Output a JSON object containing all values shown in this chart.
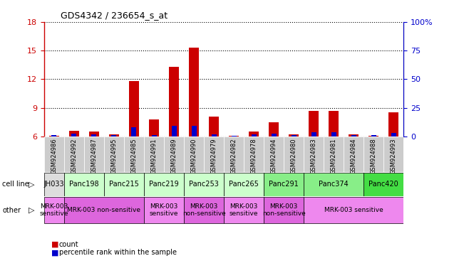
{
  "title": "GDS4342 / 236654_s_at",
  "samples": [
    "GSM924986",
    "GSM924992",
    "GSM924987",
    "GSM924995",
    "GSM924985",
    "GSM924991",
    "GSM924989",
    "GSM924990",
    "GSM924979",
    "GSM924982",
    "GSM924978",
    "GSM924994",
    "GSM924980",
    "GSM924983",
    "GSM924981",
    "GSM924984",
    "GSM924988",
    "GSM924993"
  ],
  "count_values": [
    6.1,
    6.6,
    6.5,
    6.2,
    11.8,
    7.8,
    13.3,
    15.3,
    8.1,
    6.05,
    6.5,
    7.5,
    6.2,
    8.7,
    8.7,
    6.2,
    6.1,
    8.5
  ],
  "percentile_values": [
    1.0,
    2.2,
    1.8,
    1.2,
    8.0,
    1.5,
    9.0,
    9.5,
    1.8,
    0.6,
    1.8,
    2.5,
    1.2,
    3.5,
    3.5,
    1.5,
    1.5,
    2.8
  ],
  "ylim_left": [
    6,
    18
  ],
  "ylim_right": [
    0,
    100
  ],
  "yticks_left": [
    6,
    9,
    12,
    15,
    18
  ],
  "yticks_right": [
    0,
    25,
    50,
    75,
    100
  ],
  "ytick_labels_right": [
    "0",
    "25",
    "50",
    "75",
    "100%"
  ],
  "cell_lines": [
    {
      "label": "JH033",
      "start": 0,
      "end": 1,
      "color": "#dddddd"
    },
    {
      "label": "Panc198",
      "start": 1,
      "end": 3,
      "color": "#ccffcc"
    },
    {
      "label": "Panc215",
      "start": 3,
      "end": 5,
      "color": "#ccffcc"
    },
    {
      "label": "Panc219",
      "start": 5,
      "end": 7,
      "color": "#ccffcc"
    },
    {
      "label": "Panc253",
      "start": 7,
      "end": 9,
      "color": "#ccffcc"
    },
    {
      "label": "Panc265",
      "start": 9,
      "end": 11,
      "color": "#ccffcc"
    },
    {
      "label": "Panc291",
      "start": 11,
      "end": 13,
      "color": "#88ee88"
    },
    {
      "label": "Panc374",
      "start": 13,
      "end": 16,
      "color": "#88ee88"
    },
    {
      "label": "Panc420",
      "start": 16,
      "end": 18,
      "color": "#44dd44"
    }
  ],
  "sample_bg_colors": [
    "#cccccc",
    "#cccccc",
    "#cccccc",
    "#cccccc",
    "#cccccc",
    "#cccccc",
    "#cccccc",
    "#cccccc",
    "#cccccc",
    "#cccccc",
    "#cccccc",
    "#cccccc",
    "#cccccc",
    "#cccccc",
    "#cccccc",
    "#cccccc",
    "#cccccc",
    "#cccccc"
  ],
  "other_rows": [
    {
      "label": "MRK-003\nsensitive",
      "start": 0,
      "end": 1,
      "color": "#ee88ee"
    },
    {
      "label": "MRK-003 non-sensitive",
      "start": 1,
      "end": 5,
      "color": "#dd66dd"
    },
    {
      "label": "MRK-003\nsensitive",
      "start": 5,
      "end": 7,
      "color": "#ee88ee"
    },
    {
      "label": "MRK-003\nnon-sensitive",
      "start": 7,
      "end": 9,
      "color": "#dd66dd"
    },
    {
      "label": "MRK-003\nsensitive",
      "start": 9,
      "end": 11,
      "color": "#ee88ee"
    },
    {
      "label": "MRK-003\nnon-sensitive",
      "start": 11,
      "end": 13,
      "color": "#dd66dd"
    },
    {
      "label": "MRK-003 sensitive",
      "start": 13,
      "end": 18,
      "color": "#ee88ee"
    }
  ],
  "count_color": "#cc0000",
  "percentile_color": "#0000cc",
  "bar_width": 0.5,
  "percentile_bar_width": 0.25,
  "background_color": "#ffffff",
  "left_axis_color": "#cc0000",
  "right_axis_color": "#0000cc"
}
